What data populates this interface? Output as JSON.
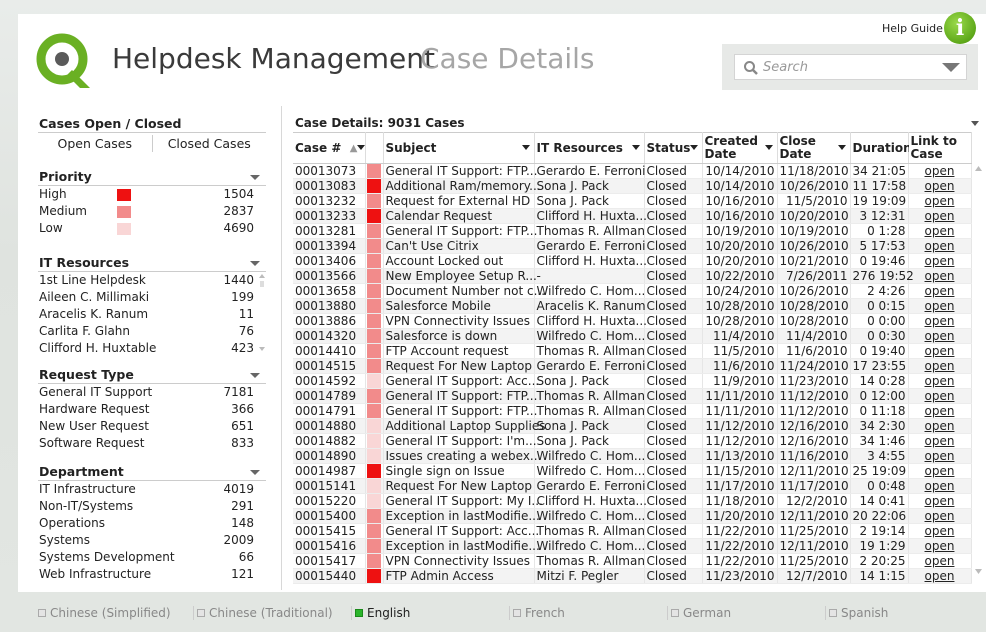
{
  "header": {
    "title": "Helpdesk Management",
    "subtitle": "Case Details",
    "help_label": "Help Guide",
    "help_icon": "info-icon",
    "search_placeholder": "Search"
  },
  "colors": {
    "high": "#ee1111",
    "medium": "#f28b8b",
    "low": "#f9d6d6",
    "accent": "#6ab023"
  },
  "left": {
    "open_closed": {
      "title": "Cases Open / Closed",
      "open": "Open Cases",
      "closed": "Closed Cases"
    },
    "priority": {
      "title": "Priority",
      "items": [
        {
          "label": "High",
          "value": "1504"
        },
        {
          "label": "Medium",
          "value": "2837"
        },
        {
          "label": "Low",
          "value": "4690"
        }
      ]
    },
    "it_resources": {
      "title": "IT Resources",
      "items": [
        {
          "label": "1st Line Helpdesk",
          "value": "1440"
        },
        {
          "label": "Aileen C. Millimaki",
          "value": "199"
        },
        {
          "label": "Aracelis K. Ranum",
          "value": "11"
        },
        {
          "label": "Carlita F. Glahn",
          "value": "76"
        },
        {
          "label": "Clifford H. Huxtable",
          "value": "423"
        }
      ]
    },
    "request_type": {
      "title": "Request Type",
      "items": [
        {
          "label": "General IT Support",
          "value": "7181"
        },
        {
          "label": "Hardware Request",
          "value": "366"
        },
        {
          "label": "New User Request",
          "value": "651"
        },
        {
          "label": "Software Request",
          "value": "833"
        }
      ]
    },
    "department": {
      "title": "Department",
      "items": [
        {
          "label": "IT Infrastructure",
          "value": "4019"
        },
        {
          "label": "Non-IT/Systems",
          "value": "291"
        },
        {
          "label": "Operations",
          "value": "148"
        },
        {
          "label": "Systems",
          "value": "2009"
        },
        {
          "label": "Systems Development",
          "value": "66"
        },
        {
          "label": "Web Infrastructure",
          "value": "121"
        }
      ]
    }
  },
  "table": {
    "title": "Case Details: 9031 Cases",
    "headers": {
      "case": "Case #",
      "subject": "Subject",
      "it": "IT Resources",
      "status": "Status",
      "created": "Created Date",
      "close": "Close Date",
      "duration": "Duration",
      "link": "Link to Case"
    },
    "rows": [
      {
        "case": "00013073",
        "p": "medium",
        "subject": "General IT Support: FTP...",
        "it": "Gerardo E. Ferroni",
        "status": "Closed",
        "created": "10/14/2010",
        "close": "11/18/2010",
        "duration": "34 21:05",
        "link": "open"
      },
      {
        "case": "00013083",
        "p": "high",
        "subject": "Additional Ram/memory...",
        "it": "Sona J. Pack",
        "status": "Closed",
        "created": "10/14/2010",
        "close": "10/26/2010",
        "duration": "11 17:58",
        "link": "open"
      },
      {
        "case": "00013232",
        "p": "medium",
        "subject": "Request for External HD",
        "it": "Sona J. Pack",
        "status": "Closed",
        "created": "10/16/2010",
        "close": "11/5/2010",
        "duration": "19 19:09",
        "link": "open"
      },
      {
        "case": "00013233",
        "p": "high",
        "subject": "Calendar Request",
        "it": "Clifford H. Huxta...",
        "status": "Closed",
        "created": "10/16/2010",
        "close": "10/20/2010",
        "duration": "3 12:31",
        "link": "open"
      },
      {
        "case": "00013281",
        "p": "medium",
        "subject": "General IT Support: FTP...",
        "it": "Thomas R. Allman",
        "status": "Closed",
        "created": "10/19/2010",
        "close": "10/19/2010",
        "duration": "0 1:28",
        "link": "open"
      },
      {
        "case": "00013394",
        "p": "medium",
        "subject": "Can't Use Citrix",
        "it": "Gerardo E. Ferroni",
        "status": "Closed",
        "created": "10/20/2010",
        "close": "10/26/2010",
        "duration": "5 17:53",
        "link": "open"
      },
      {
        "case": "00013406",
        "p": "medium",
        "subject": "Account Locked out",
        "it": "Clifford H. Huxta...",
        "status": "Closed",
        "created": "10/20/2010",
        "close": "10/21/2010",
        "duration": "0 19:46",
        "link": "open"
      },
      {
        "case": "00013566",
        "p": "medium",
        "subject": "New Employee Setup R...",
        "it": "-",
        "status": "Closed",
        "created": "10/22/2010",
        "close": "7/26/2011",
        "duration": "276 19:52",
        "link": "open"
      },
      {
        "case": "00013658",
        "p": "medium",
        "subject": "Document Number not c...",
        "it": "Wilfredo C. Hom...",
        "status": "Closed",
        "created": "10/24/2010",
        "close": "10/26/2010",
        "duration": "2 4:26",
        "link": "open"
      },
      {
        "case": "00013880",
        "p": "medium",
        "subject": "Salesforce Mobile",
        "it": "Aracelis K. Ranum",
        "status": "Closed",
        "created": "10/28/2010",
        "close": "10/28/2010",
        "duration": "0 0:15",
        "link": "open"
      },
      {
        "case": "00013886",
        "p": "medium",
        "subject": "VPN Connectivity Issues",
        "it": "Clifford H. Huxta...",
        "status": "Closed",
        "created": "10/28/2010",
        "close": "10/28/2010",
        "duration": "0 0:00",
        "link": "open"
      },
      {
        "case": "00014320",
        "p": "medium",
        "subject": "Salesforce is down",
        "it": "Wilfredo C. Hom...",
        "status": "Closed",
        "created": "11/4/2010",
        "close": "11/4/2010",
        "duration": "0 0:30",
        "link": "open"
      },
      {
        "case": "00014410",
        "p": "medium",
        "subject": "FTP Account request",
        "it": "Thomas R. Allman",
        "status": "Closed",
        "created": "11/5/2010",
        "close": "11/6/2010",
        "duration": "0 19:40",
        "link": "open"
      },
      {
        "case": "00014515",
        "p": "medium",
        "subject": "Request For New Laptop",
        "it": "Gerardo E. Ferroni",
        "status": "Closed",
        "created": "11/6/2010",
        "close": "11/24/2010",
        "duration": "17 23:55",
        "link": "open"
      },
      {
        "case": "00014592",
        "p": "low",
        "subject": "General IT Support: Acc...",
        "it": "Sona J. Pack",
        "status": "Closed",
        "created": "11/9/2010",
        "close": "11/23/2010",
        "duration": "14 0:28",
        "link": "open"
      },
      {
        "case": "00014789",
        "p": "medium",
        "subject": "General IT Support: FTP...",
        "it": "Thomas R. Allman",
        "status": "Closed",
        "created": "11/11/2010",
        "close": "11/12/2010",
        "duration": "0 12:00",
        "link": "open"
      },
      {
        "case": "00014791",
        "p": "medium",
        "subject": "General IT Support: FTP...",
        "it": "Thomas R. Allman",
        "status": "Closed",
        "created": "11/11/2010",
        "close": "11/12/2010",
        "duration": "0 11:18",
        "link": "open"
      },
      {
        "case": "00014880",
        "p": "low",
        "subject": "Additional Laptop Supplies",
        "it": "Sona J. Pack",
        "status": "Closed",
        "created": "11/12/2010",
        "close": "12/16/2010",
        "duration": "34 2:30",
        "link": "open"
      },
      {
        "case": "00014882",
        "p": "low",
        "subject": "General IT Support: I'm...",
        "it": "Sona J. Pack",
        "status": "Closed",
        "created": "11/12/2010",
        "close": "12/16/2010",
        "duration": "34 1:46",
        "link": "open"
      },
      {
        "case": "00014890",
        "p": "low",
        "subject": "Issues creating a webex...",
        "it": "Wilfredo C. Hom...",
        "status": "Closed",
        "created": "11/13/2010",
        "close": "11/16/2010",
        "duration": "3 4:55",
        "link": "open"
      },
      {
        "case": "00014987",
        "p": "high",
        "subject": "Single sign on Issue",
        "it": "Wilfredo C. Hom...",
        "status": "Closed",
        "created": "11/15/2010",
        "close": "12/11/2010",
        "duration": "25 19:09",
        "link": "open"
      },
      {
        "case": "00015141",
        "p": "low",
        "subject": "Request For New Laptop",
        "it": "Gerardo E. Ferroni",
        "status": "Closed",
        "created": "11/17/2010",
        "close": "11/17/2010",
        "duration": "0 0:48",
        "link": "open"
      },
      {
        "case": "00015220",
        "p": "low",
        "subject": "General IT Support: My I...",
        "it": "Clifford H. Huxta...",
        "status": "Closed",
        "created": "11/18/2010",
        "close": "12/2/2010",
        "duration": "14 0:41",
        "link": "open"
      },
      {
        "case": "00015400",
        "p": "medium",
        "subject": "Exception in lastModifie...",
        "it": "Wilfredo C. Hom...",
        "status": "Closed",
        "created": "11/20/2010",
        "close": "12/11/2010",
        "duration": "20 22:06",
        "link": "open"
      },
      {
        "case": "00015415",
        "p": "medium",
        "subject": "General IT Support: Acc...",
        "it": "Thomas R. Allman",
        "status": "Closed",
        "created": "11/22/2010",
        "close": "11/25/2010",
        "duration": "2 19:14",
        "link": "open"
      },
      {
        "case": "00015416",
        "p": "medium",
        "subject": "Exception in lastModifie...",
        "it": "Wilfredo C. Hom...",
        "status": "Closed",
        "created": "11/22/2010",
        "close": "12/11/2010",
        "duration": "19 1:29",
        "link": "open"
      },
      {
        "case": "00015417",
        "p": "medium",
        "subject": "VPN Connectivity Issues",
        "it": "Thomas R. Allman",
        "status": "Closed",
        "created": "11/22/2010",
        "close": "11/25/2010",
        "duration": "2 20:25",
        "link": "open"
      },
      {
        "case": "00015440",
        "p": "high",
        "subject": "FTP Admin Access",
        "it": "Mitzi F. Pegler",
        "status": "Closed",
        "created": "11/23/2010",
        "close": "12/7/2010",
        "duration": "14 1:15",
        "link": "open"
      }
    ]
  },
  "languages": [
    {
      "label": "Chinese (Simplified)",
      "active": false
    },
    {
      "label": "Chinese (Traditional)",
      "active": false
    },
    {
      "label": "English",
      "active": true
    },
    {
      "label": "French",
      "active": false
    },
    {
      "label": "German",
      "active": false
    },
    {
      "label": "Spanish",
      "active": false
    }
  ]
}
